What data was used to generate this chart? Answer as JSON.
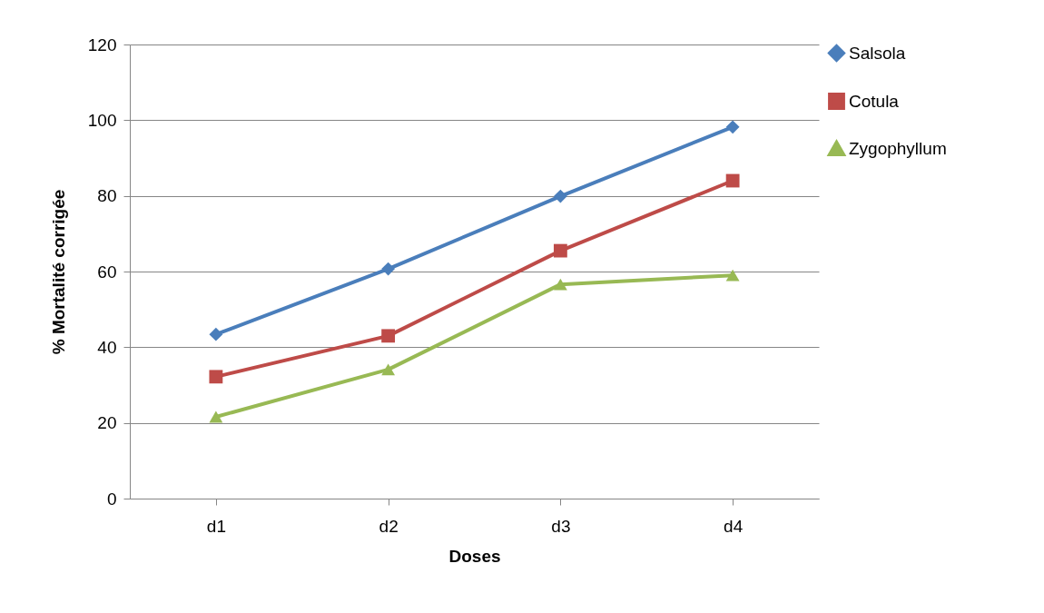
{
  "chart_data": {
    "type": "line",
    "xlabel": "Doses",
    "ylabel": "% Mortalité corrigée",
    "categories": [
      "d1",
      "d2",
      "d3",
      "d4"
    ],
    "series": [
      {
        "name": "Salsola",
        "color": "#4a7ebb",
        "marker": "diamond",
        "values": [
          43.4,
          60.7,
          79.9,
          98.2
        ]
      },
      {
        "name": "Cotula",
        "color": "#be4b48",
        "marker": "square",
        "values": [
          32.2,
          43,
          65.5,
          84
        ]
      },
      {
        "name": "Zygophyllum",
        "color": "#98b954",
        "marker": "triangle",
        "values": [
          21.6,
          34.1,
          56.6,
          59
        ]
      }
    ],
    "ylim": [
      0,
      120
    ],
    "yticks": [
      0,
      20,
      40,
      60,
      80,
      100,
      120
    ],
    "grid": "y",
    "legend": "right"
  }
}
